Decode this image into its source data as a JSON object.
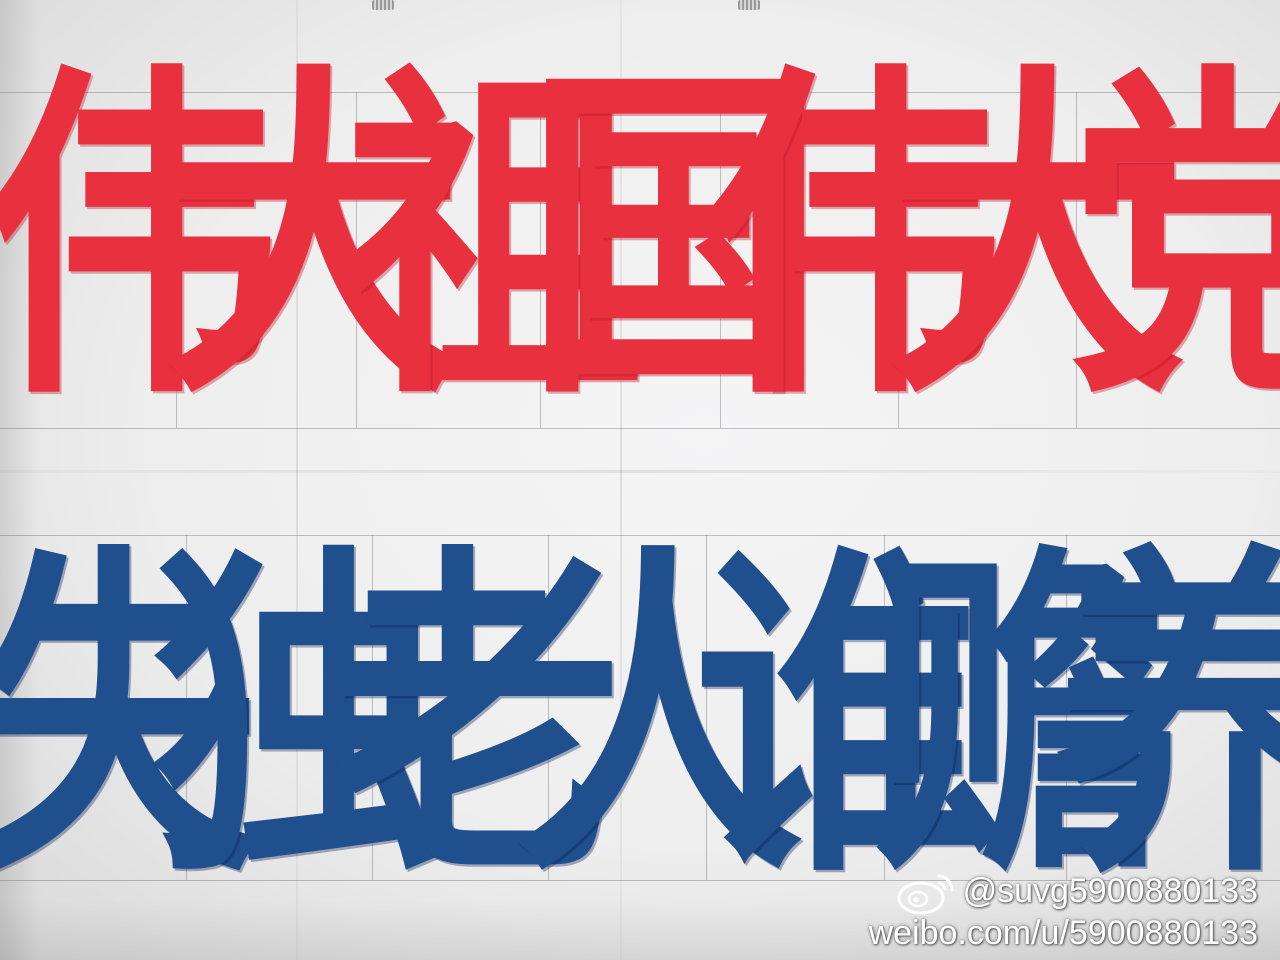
{
  "banner": {
    "line1": [
      "伟",
      "大",
      "祖",
      "国",
      "伟",
      "大",
      "党"
    ],
    "line2": [
      "失",
      "独",
      "老",
      "人",
      "谁",
      "赡",
      "养"
    ]
  },
  "watermark": {
    "handle": "@suvg5900880133",
    "url": "weibo.com/u/5900880133",
    "logo_icon": "weibo-logo-icon"
  },
  "colors": {
    "red_ink": "#e8303f",
    "blue_ink": "#1f4f8c",
    "paper": "#f2f2f3"
  }
}
